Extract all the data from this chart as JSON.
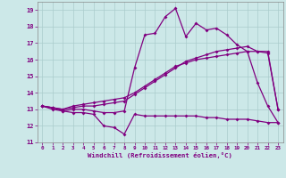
{
  "xlabel": "Windchill (Refroidissement éolien,°C)",
  "x": [
    0,
    1,
    2,
    3,
    4,
    5,
    6,
    7,
    8,
    9,
    10,
    11,
    12,
    13,
    14,
    15,
    16,
    17,
    18,
    19,
    20,
    21,
    22,
    23
  ],
  "line1": [
    13.2,
    13.1,
    12.9,
    12.8,
    12.8,
    12.7,
    12.0,
    11.9,
    11.5,
    12.7,
    12.6,
    12.6,
    12.6,
    12.6,
    12.6,
    12.6,
    12.5,
    12.5,
    12.4,
    12.4,
    12.4,
    12.3,
    12.2,
    12.2
  ],
  "line2": [
    13.2,
    13.0,
    12.9,
    13.0,
    13.0,
    12.9,
    12.8,
    12.8,
    12.9,
    15.5,
    17.5,
    17.6,
    18.6,
    19.1,
    17.4,
    18.2,
    17.8,
    17.9,
    17.5,
    16.9,
    16.5,
    14.6,
    13.2,
    12.2
  ],
  "line3": [
    13.2,
    13.1,
    13.0,
    13.1,
    13.2,
    13.2,
    13.3,
    13.4,
    13.5,
    13.9,
    14.3,
    14.7,
    15.1,
    15.5,
    15.9,
    16.1,
    16.3,
    16.5,
    16.6,
    16.7,
    16.8,
    16.5,
    16.5,
    13.0
  ],
  "line4": [
    13.2,
    13.1,
    13.0,
    13.2,
    13.3,
    13.4,
    13.5,
    13.6,
    13.7,
    14.0,
    14.4,
    14.8,
    15.2,
    15.6,
    15.8,
    16.0,
    16.1,
    16.2,
    16.3,
    16.4,
    16.5,
    16.5,
    16.4,
    13.0
  ],
  "bg_color": "#cce8e8",
  "line_color": "#800080",
  "grid_color": "#aacccc",
  "ylim": [
    11,
    19.5
  ],
  "xlim": [
    -0.5,
    23.5
  ],
  "yticks": [
    11,
    12,
    13,
    14,
    15,
    16,
    17,
    18,
    19
  ],
  "xticks": [
    0,
    1,
    2,
    3,
    4,
    5,
    6,
    7,
    8,
    9,
    10,
    11,
    12,
    13,
    14,
    15,
    16,
    17,
    18,
    19,
    20,
    21,
    22,
    23
  ]
}
